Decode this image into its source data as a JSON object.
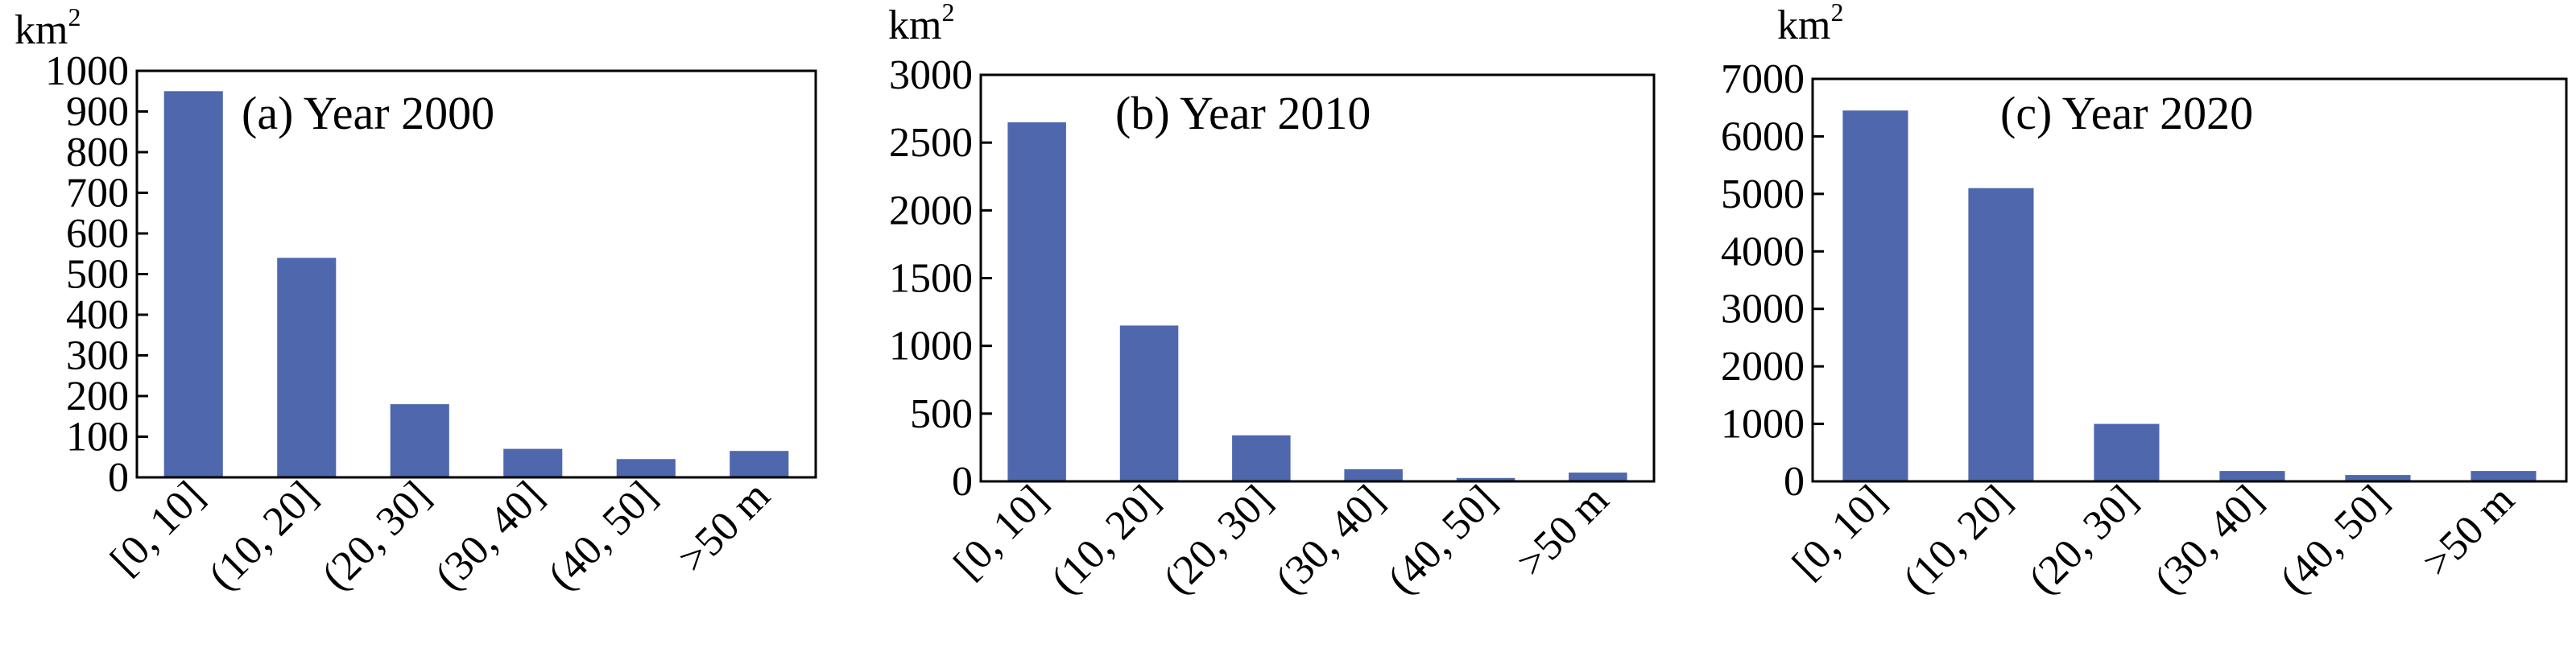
{
  "bar_color": "#4e67ad",
  "chart_data": [
    {
      "type": "bar",
      "title": "(a) Year 2000",
      "unit_label": "km",
      "unit_sup": "2",
      "categories": [
        "[0, 10]",
        "(10, 20]",
        "(20, 30]",
        "(30, 40]",
        "(40, 50]",
        ">50 m"
      ],
      "values": [
        950,
        540,
        180,
        70,
        45,
        65
      ],
      "ylim": [
        0,
        1000
      ],
      "yticks": [
        0,
        100,
        200,
        300,
        400,
        500,
        600,
        700,
        800,
        900,
        1000
      ],
      "grid": false,
      "legend": "none"
    },
    {
      "type": "bar",
      "title": "(b) Year 2010",
      "unit_label": "km",
      "unit_sup": "2",
      "categories": [
        "[0, 10]",
        "(10, 20]",
        "(20, 30]",
        "(30, 40]",
        "(40, 50]",
        ">50 m"
      ],
      "values": [
        2650,
        1150,
        340,
        90,
        25,
        65
      ],
      "ylim": [
        0,
        3000
      ],
      "yticks": [
        0,
        500,
        1000,
        1500,
        2000,
        2500,
        3000
      ],
      "grid": false,
      "legend": "none"
    },
    {
      "type": "bar",
      "title": "(c) Year 2020",
      "unit_label": "km",
      "unit_sup": "2",
      "categories": [
        "[0, 10]",
        "(10, 20]",
        "(20, 30]",
        "(30, 40]",
        "(40, 50]",
        ">50 m"
      ],
      "values": [
        6450,
        5100,
        1000,
        180,
        110,
        180
      ],
      "ylim": [
        0,
        7000
      ],
      "yticks": [
        0,
        1000,
        2000,
        3000,
        4000,
        5000,
        6000,
        7000
      ],
      "grid": false,
      "legend": "none"
    }
  ]
}
